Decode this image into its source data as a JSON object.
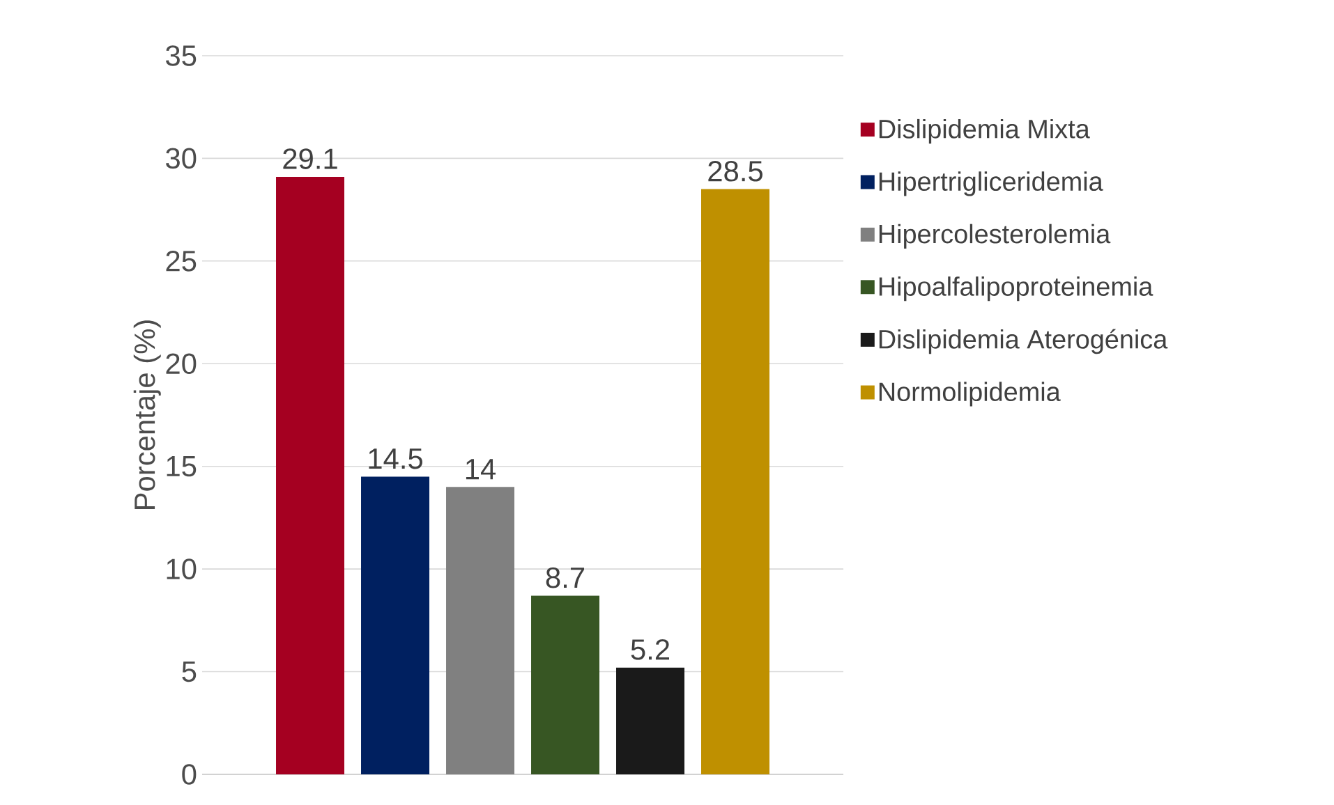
{
  "chart_data": {
    "type": "bar",
    "ylabel": "Porcentaje (%)",
    "categories": [
      null
    ],
    "series": [
      {
        "name": "Dislipidemia Mixta",
        "color": "#a50021",
        "values": [
          29.1
        ]
      },
      {
        "name": "Hipertrigliceridemia",
        "color": "#002060",
        "values": [
          14.5
        ]
      },
      {
        "name": "Hipercolesterolemia",
        "color": "#808080",
        "values": [
          14
        ]
      },
      {
        "name": "Hipoalfalipoproteinemia",
        "color": "#375623",
        "values": [
          8.7
        ]
      },
      {
        "name": "Dislipidemia Aterogénica",
        "color": "#1a1a1a",
        "values": [
          5.2
        ]
      },
      {
        "name": "Normolipidemia",
        "color": "#bf9000",
        "values": [
          28.5
        ]
      }
    ],
    "ylim": [
      0,
      35
    ],
    "yticks": [
      0,
      5,
      10,
      15,
      20,
      25,
      30,
      35
    ],
    "grid": "y",
    "legend": "right",
    "data_labels": true
  }
}
